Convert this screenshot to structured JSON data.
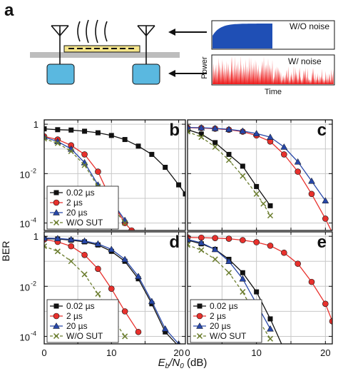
{
  "panel_a": {
    "label": "a",
    "plot_top": {
      "annotation": "W/O noise",
      "color": "#1f4fb5"
    },
    "plot_bottom": {
      "annotation": "W/ noise",
      "color": "#ee1c1c"
    },
    "ylabel": "Power",
    "xlabel": "Time"
  },
  "common": {
    "ylabel": "BER",
    "xlabel_main": "E",
    "xlabel_sub1": "b",
    "xlabel_slash": "/",
    "xlabel_main2": "N",
    "xlabel_sub2": "0",
    "xlabel_unit": " (dB)",
    "y_tick_1": "1",
    "y_tick_2_base": "10",
    "y_tick_2_exp": "-2",
    "y_tick_4_base": "10",
    "y_tick_4_exp": "-4",
    "x_ticks": [
      "0",
      "10",
      "20"
    ]
  },
  "chart_data": [
    {
      "panel": "b",
      "type": "line",
      "yscale": "log",
      "xlim": [
        0,
        21
      ],
      "ylim": [
        5e-05,
        1.5
      ],
      "grid": true,
      "legend": "bottom-left",
      "series": [
        {
          "name": "0.02 µs",
          "color": "#111111",
          "marker": "square",
          "dash": false,
          "x": [
            0,
            2,
            4,
            6,
            8,
            10,
            12,
            14,
            16,
            18,
            20,
            21
          ],
          "y": [
            0.65,
            0.6,
            0.58,
            0.52,
            0.45,
            0.35,
            0.24,
            0.13,
            0.06,
            0.018,
            0.0035,
            0.0015
          ]
        },
        {
          "name": "2 µs",
          "color": "#e8312d",
          "marker": "circle",
          "dash": false,
          "x": [
            0,
            2,
            4,
            6,
            8,
            10,
            12,
            13
          ],
          "y": [
            0.32,
            0.24,
            0.14,
            0.06,
            0.012,
            0.0008,
            0.0001,
            5e-05
          ]
        },
        {
          "name": "20 µs",
          "color": "#2747a8",
          "marker": "triangle",
          "dash": false,
          "x": [
            0,
            2,
            4,
            6,
            8,
            10,
            12
          ],
          "y": [
            0.3,
            0.2,
            0.1,
            0.028,
            0.0035,
            0.0008,
            0.00013
          ]
        },
        {
          "name": "W/O SUT",
          "color": "#6b7d2e",
          "marker": "x",
          "dash": true,
          "x": [
            0,
            2,
            4,
            6,
            8,
            10,
            12
          ],
          "y": [
            0.26,
            0.17,
            0.08,
            0.022,
            0.003,
            0.0005,
            0.0001
          ]
        }
      ]
    },
    {
      "panel": "c",
      "type": "line",
      "yscale": "log",
      "xlim": [
        0,
        21
      ],
      "ylim": [
        5e-05,
        1.5
      ],
      "grid": true,
      "legend": "",
      "series": [
        {
          "name": "0.02 µs",
          "color": "#111111",
          "marker": "square",
          "dash": false,
          "x": [
            0,
            2,
            4,
            6,
            8,
            10,
            12
          ],
          "y": [
            0.6,
            0.4,
            0.18,
            0.06,
            0.02,
            0.003,
            0.0005
          ]
        },
        {
          "name": "2 µs",
          "color": "#e8312d",
          "marker": "circle",
          "dash": false,
          "x": [
            0,
            2,
            4,
            6,
            8,
            10,
            12,
            14,
            16,
            18,
            20,
            21
          ],
          "y": [
            0.72,
            0.7,
            0.66,
            0.6,
            0.5,
            0.35,
            0.2,
            0.06,
            0.012,
            0.0015,
            0.00015,
            4e-05
          ]
        },
        {
          "name": "20 µs",
          "color": "#2747a8",
          "marker": "triangle",
          "dash": false,
          "x": [
            0,
            2,
            4,
            6,
            8,
            10,
            12,
            14,
            16,
            18,
            20
          ],
          "y": [
            0.74,
            0.72,
            0.68,
            0.62,
            0.53,
            0.42,
            0.3,
            0.12,
            0.03,
            0.005,
            0.0008
          ]
        },
        {
          "name": "W/O SUT",
          "color": "#6b7d2e",
          "marker": "x",
          "dash": true,
          "x": [
            0,
            2,
            4,
            6,
            8,
            10,
            11,
            12
          ],
          "y": [
            0.5,
            0.3,
            0.12,
            0.035,
            0.008,
            0.0015,
            0.0006,
            0.0002
          ]
        }
      ]
    },
    {
      "panel": "d",
      "type": "line",
      "yscale": "log",
      "xlim": [
        0,
        21
      ],
      "ylim": [
        5e-05,
        1.5
      ],
      "grid": true,
      "legend": "bottom-left",
      "series": [
        {
          "name": "0.02 µs",
          "color": "#111111",
          "marker": "square",
          "dash": false,
          "x": [
            0,
            2,
            4,
            6,
            8,
            10,
            12,
            14,
            16,
            18,
            20
          ],
          "y": [
            0.8,
            0.78,
            0.7,
            0.6,
            0.45,
            0.25,
            0.1,
            0.02,
            0.002,
            0.00015,
            4e-05
          ]
        },
        {
          "name": "2 µs",
          "color": "#e8312d",
          "marker": "circle",
          "dash": false,
          "x": [
            0,
            2,
            4,
            6,
            8,
            10,
            12,
            14
          ],
          "y": [
            0.75,
            0.6,
            0.4,
            0.18,
            0.05,
            0.008,
            0.001,
            0.00015
          ]
        },
        {
          "name": "20 µs",
          "color": "#2747a8",
          "marker": "triangle",
          "dash": false,
          "x": [
            0,
            2,
            4,
            6,
            8,
            10,
            12,
            14,
            16,
            18,
            20
          ],
          "y": [
            0.85,
            0.82,
            0.75,
            0.65,
            0.5,
            0.3,
            0.12,
            0.025,
            0.0025,
            0.0002,
            5e-05
          ]
        },
        {
          "name": "W/O SUT",
          "color": "#6b7d2e",
          "marker": "x",
          "dash": true,
          "x": [
            0,
            2,
            4,
            6,
            8,
            10,
            12
          ],
          "y": [
            0.4,
            0.25,
            0.1,
            0.03,
            0.005,
            0.0006,
            0.0001
          ]
        }
      ]
    },
    {
      "panel": "e",
      "type": "line",
      "yscale": "log",
      "xlim": [
        0,
        21
      ],
      "ylim": [
        5e-05,
        1.5
      ],
      "grid": true,
      "legend": "bottom-left",
      "series": [
        {
          "name": "0.02 µs",
          "color": "#111111",
          "marker": "square",
          "dash": false,
          "x": [
            0,
            2,
            4,
            6,
            8,
            10,
            12,
            14
          ],
          "y": [
            0.7,
            0.5,
            0.3,
            0.12,
            0.035,
            0.006,
            0.0005,
            3e-05
          ]
        },
        {
          "name": "2 µs",
          "color": "#e8312d",
          "marker": "circle",
          "dash": false,
          "x": [
            0,
            2,
            4,
            6,
            8,
            10,
            12,
            14,
            16,
            18,
            20,
            21
          ],
          "y": [
            0.9,
            0.88,
            0.85,
            0.8,
            0.7,
            0.58,
            0.42,
            0.22,
            0.08,
            0.015,
            0.002,
            0.0004
          ]
        },
        {
          "name": "20 µs",
          "color": "#2747a8",
          "marker": "triangle",
          "dash": false,
          "x": [
            0,
            2,
            4,
            6,
            8,
            10,
            12
          ],
          "y": [
            0.75,
            0.55,
            0.3,
            0.1,
            0.02,
            0.002,
            0.0002
          ]
        },
        {
          "name": "W/O SUT",
          "color": "#6b7d2e",
          "marker": "x",
          "dash": true,
          "x": [
            0,
            2,
            4,
            6,
            8,
            10,
            12
          ],
          "y": [
            0.45,
            0.28,
            0.12,
            0.035,
            0.006,
            0.0006,
            8e-05
          ]
        }
      ]
    }
  ]
}
